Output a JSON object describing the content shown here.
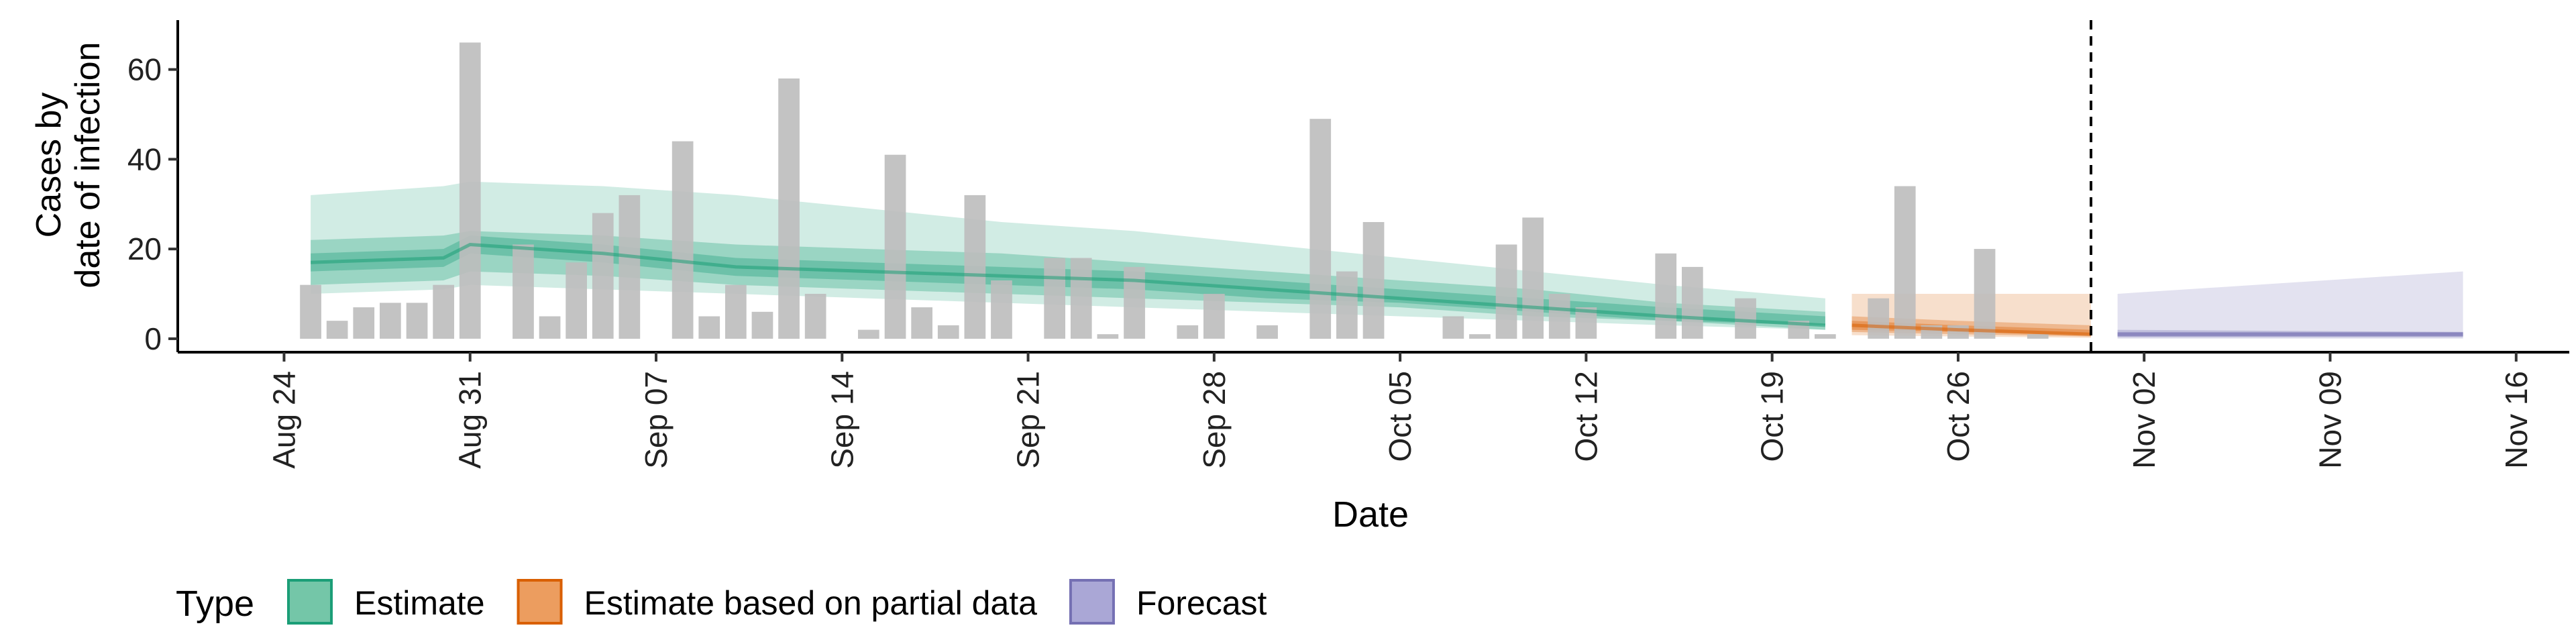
{
  "chart_data": {
    "type": "bar",
    "xlabel": "Date",
    "ylabel_lines": [
      "Cases by",
      "date of infection"
    ],
    "y_ticks": [
      0,
      20,
      40,
      60
    ],
    "x_ticks": [
      "Aug 24",
      "Aug 31",
      "Sep 07",
      "Sep 14",
      "Sep 21",
      "Sep 28",
      "Oct 05",
      "Oct 12",
      "Oct 19",
      "Oct 26",
      "Nov 02",
      "Nov 09",
      "Nov 16"
    ],
    "xlim": [
      "2020-08-20",
      "2020-11-18"
    ],
    "ylim": [
      -3,
      71
    ],
    "grid": false,
    "cutoff_date": "2020-10-31",
    "bars": {
      "color": "#bdbdbd",
      "x": [
        "2020-08-25",
        "2020-08-26",
        "2020-08-27",
        "2020-08-28",
        "2020-08-29",
        "2020-08-30",
        "2020-08-31",
        "2020-09-01",
        "2020-09-02",
        "2020-09-03",
        "2020-09-04",
        "2020-09-05",
        "2020-09-06",
        "2020-09-07",
        "2020-09-08",
        "2020-09-09",
        "2020-09-10",
        "2020-09-11",
        "2020-09-12",
        "2020-09-13",
        "2020-09-14",
        "2020-09-15",
        "2020-09-16",
        "2020-09-17",
        "2020-09-18",
        "2020-09-19",
        "2020-09-20",
        "2020-09-21",
        "2020-09-22",
        "2020-09-23",
        "2020-09-24",
        "2020-09-25",
        "2020-09-26",
        "2020-09-27",
        "2020-09-28",
        "2020-09-29",
        "2020-09-30",
        "2020-10-01",
        "2020-10-02",
        "2020-10-03",
        "2020-10-04",
        "2020-10-05",
        "2020-10-06",
        "2020-10-07",
        "2020-10-08",
        "2020-10-09",
        "2020-10-10",
        "2020-10-11",
        "2020-10-12",
        "2020-10-13",
        "2020-10-14",
        "2020-10-15",
        "2020-10-16",
        "2020-10-17",
        "2020-10-18",
        "2020-10-19",
        "2020-10-20",
        "2020-10-21",
        "2020-10-22",
        "2020-10-23",
        "2020-10-24",
        "2020-10-25",
        "2020-10-26",
        "2020-10-27",
        "2020-10-28",
        "2020-10-29",
        "2020-10-30"
      ],
      "values": [
        12,
        4,
        7,
        8,
        8,
        12,
        66,
        0,
        21,
        5,
        17,
        28,
        32,
        0,
        44,
        5,
        12,
        6,
        58,
        10,
        0,
        2,
        41,
        7,
        3,
        32,
        13,
        0,
        18,
        18,
        1,
        16,
        0,
        3,
        10,
        0,
        3,
        0,
        49,
        15,
        26,
        0,
        0,
        5,
        1,
        21,
        27,
        10,
        7,
        0,
        0,
        19,
        16,
        0,
        9,
        0,
        4,
        1,
        0,
        9,
        34,
        3,
        3,
        20,
        0,
        1,
        0
      ]
    },
    "series": [
      {
        "name": "Estimate",
        "color": "#1b9e77",
        "x": [
          "2020-08-25",
          "2020-08-30",
          "2020-08-31",
          "2020-09-05",
          "2020-09-10",
          "2020-09-15",
          "2020-09-20",
          "2020-09-25",
          "2020-09-30",
          "2020-10-05",
          "2020-10-10",
          "2020-10-15",
          "2020-10-21"
        ],
        "median": [
          17,
          18,
          21,
          19,
          16,
          15,
          14,
          13,
          11,
          9,
          7,
          5,
          3
        ],
        "inner_lower": [
          15,
          16,
          19,
          17,
          14,
          13,
          12,
          11,
          9,
          8,
          6,
          4,
          3
        ],
        "inner_upper": [
          19,
          20,
          23,
          21,
          18,
          17,
          16,
          15,
          13,
          11,
          9,
          7,
          5
        ],
        "mid_lower": [
          12,
          13,
          15,
          14,
          12,
          11,
          10,
          9,
          8,
          7,
          5,
          4,
          2
        ],
        "mid_upper": [
          22,
          23,
          24,
          23,
          21,
          20,
          19,
          17,
          15,
          13,
          11,
          8,
          6
        ],
        "outer_lower": [
          10,
          11,
          12,
          11,
          10,
          9,
          8,
          7,
          6,
          5,
          4,
          3,
          2
        ],
        "outer_upper": [
          32,
          34,
          35,
          34,
          32,
          29,
          26,
          24,
          21,
          18,
          15,
          12,
          9
        ]
      },
      {
        "name": "Estimate based on partial data",
        "color": "#d95f02",
        "x": [
          "2020-10-22",
          "2020-10-26",
          "2020-10-31"
        ],
        "median": [
          3,
          2,
          1
        ],
        "inner_lower": [
          2,
          1.5,
          0.8
        ],
        "inner_upper": [
          4,
          3,
          2
        ],
        "mid_lower": [
          1.5,
          1,
          0.5
        ],
        "mid_upper": [
          5,
          4,
          3
        ],
        "outer_lower": [
          0.8,
          0.5,
          0.2
        ],
        "outer_upper": [
          10,
          10,
          10
        ]
      },
      {
        "name": "Forecast",
        "color": "#7570b3",
        "x": [
          "2020-11-01",
          "2020-11-14"
        ],
        "median": [
          1,
          1
        ],
        "inner_lower": [
          0.5,
          0.5
        ],
        "inner_upper": [
          1.5,
          1.5
        ],
        "mid_lower": [
          0.3,
          0.3
        ],
        "mid_upper": [
          2,
          1.5
        ],
        "outer_lower": [
          0,
          0
        ],
        "outer_upper": [
          10,
          15
        ]
      }
    ],
    "legend": {
      "title": "Type",
      "position": "bottom",
      "entries": [
        {
          "label": "Estimate",
          "fill": "#74c6a8",
          "stroke": "#1b9e77"
        },
        {
          "label": "Estimate based on partial data",
          "fill": "#ec9d5f",
          "stroke": "#d95f02"
        },
        {
          "label": "Forecast",
          "fill": "#aaa7d6",
          "stroke": "#7570b3"
        }
      ]
    }
  }
}
